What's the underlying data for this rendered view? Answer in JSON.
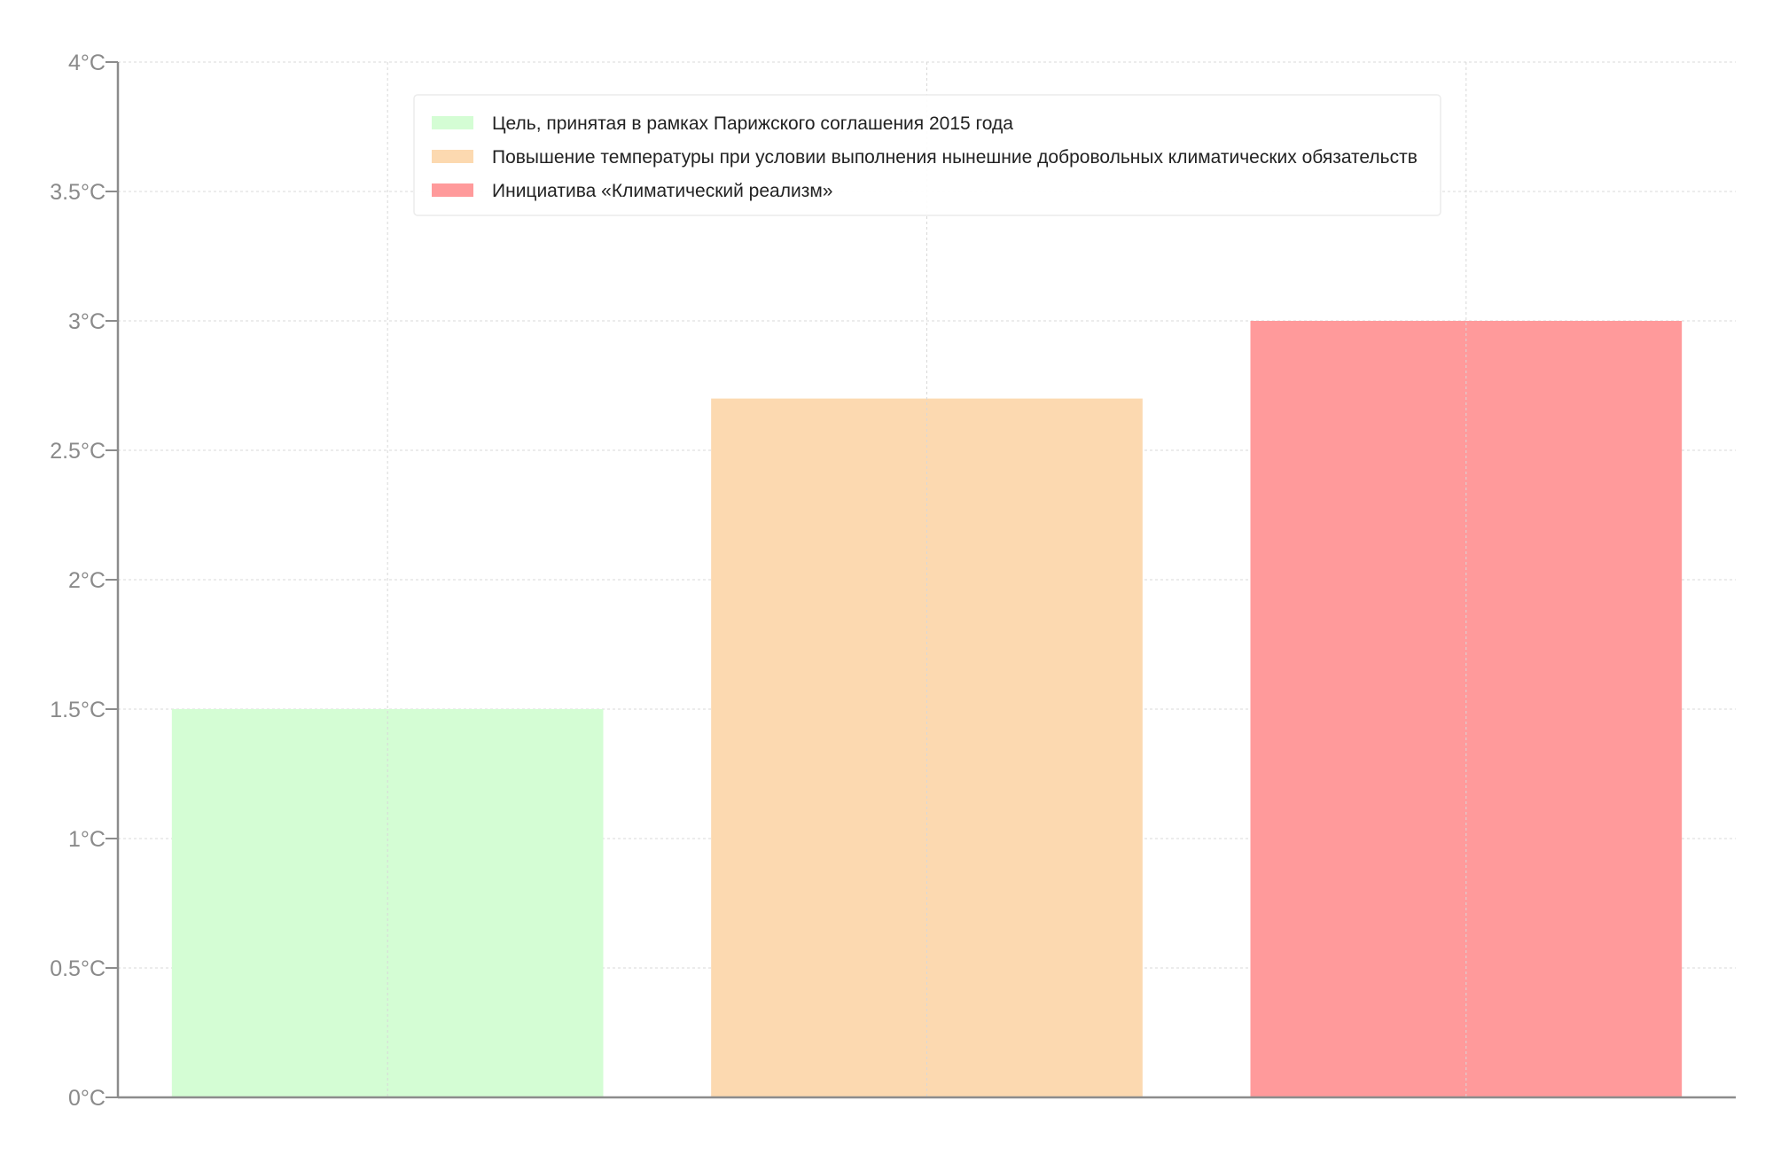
{
  "chart_data": {
    "type": "bar",
    "categories": [
      "Цель, принятая в рамках Парижского соглашения 2015 года",
      "Повышение температуры при условии выполнения нынешние добровольных климатических обязательств",
      "Инициатива «Климатический реализм»"
    ],
    "values": [
      1.5,
      2.7,
      3.0
    ],
    "colors": [
      "#d4fdd4",
      "#fcd9b0",
      "#ff9a9b"
    ],
    "ylim": [
      0,
      4
    ],
    "y_ticks": [
      {
        "value": 0,
        "label": "0°C"
      },
      {
        "value": 0.5,
        "label": "0.5°C"
      },
      {
        "value": 1,
        "label": "1°C"
      },
      {
        "value": 1.5,
        "label": "1.5°C"
      },
      {
        "value": 2,
        "label": "2°C"
      },
      {
        "value": 2.5,
        "label": "2.5°C"
      },
      {
        "value": 3,
        "label": "3°C"
      },
      {
        "value": 3.5,
        "label": "3.5°C"
      },
      {
        "value": 4,
        "label": "4°C"
      }
    ],
    "grid": true,
    "legend_position": "top-center",
    "title": "",
    "xlabel": "",
    "ylabel": ""
  }
}
